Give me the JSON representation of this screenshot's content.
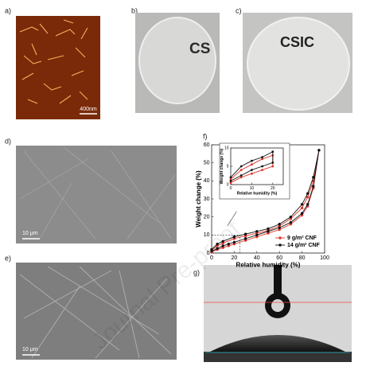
{
  "panels": {
    "a": "a)",
    "b": "b)",
    "c": "c)",
    "d": "d)",
    "e": "e)",
    "f": "f)",
    "g": "g)"
  },
  "images": {
    "afm_scale": "400nm",
    "photo_b_text": "CS",
    "photo_c_text": "CSIC",
    "sem_d_scale": "10 μm",
    "sem_e_scale": "10 μm"
  },
  "watermark": "Journal Pre-proof",
  "chart_data": [
    {
      "type": "line",
      "xlabel": "Relative humidity (%)",
      "ylabel": "Weight change (%)",
      "xlim": [
        0,
        100
      ],
      "xticks": [
        0,
        20,
        40,
        60,
        80,
        100
      ],
      "ylim": [
        0,
        60
      ],
      "yticks": [
        0,
        10,
        20,
        30,
        40,
        50,
        60
      ],
      "legend": "lower right",
      "series": [
        {
          "name": "9 g/m² CNF",
          "color": "#e0352b",
          "x": [
            0,
            5,
            10,
            15,
            20,
            30,
            40,
            50,
            60,
            70,
            80,
            85,
            90,
            95,
            90,
            85,
            80,
            70,
            60,
            50,
            40,
            30,
            20,
            10,
            5,
            0
          ],
          "values": [
            0.5,
            2,
            3,
            4,
            5,
            7,
            9,
            11,
            13,
            16,
            21,
            26,
            36,
            57,
            40,
            31,
            25,
            19,
            15,
            12.5,
            11,
            9.5,
            8,
            5.5,
            4,
            1.5
          ]
        },
        {
          "name": "14 g/m² CNF",
          "color": "#111111",
          "x": [
            0,
            5,
            10,
            15,
            20,
            30,
            40,
            50,
            60,
            70,
            80,
            85,
            90,
            95,
            90,
            85,
            80,
            70,
            60,
            50,
            40,
            30,
            20,
            10,
            5,
            0
          ],
          "values": [
            1,
            2.5,
            4,
            5,
            6,
            8,
            10,
            12,
            14,
            17,
            22,
            27,
            37,
            57,
            42,
            33,
            27,
            20,
            16,
            13.5,
            12,
            10.5,
            9,
            6.5,
            5,
            2
          ]
        }
      ]
    },
    {
      "type": "line",
      "xlabel": "Relative humidity (%)",
      "ylabel": "Weight change (%)",
      "xlim": [
        0,
        25
      ],
      "xticks": [
        0,
        10,
        20
      ],
      "ylim": [
        0,
        10
      ],
      "yticks": [
        0,
        5,
        10
      ],
      "series": [
        {
          "color": "#e0352b",
          "x": [
            0,
            5,
            10,
            15,
            20,
            20,
            15,
            10,
            5,
            0
          ],
          "values": [
            0.5,
            2,
            3,
            4,
            5,
            8,
            7,
            5.5,
            4,
            1.5
          ]
        },
        {
          "color": "#111111",
          "x": [
            0,
            5,
            10,
            15,
            20,
            20,
            15,
            10,
            5,
            0
          ],
          "values": [
            1,
            2.5,
            4,
            5,
            6,
            9,
            7.5,
            6.5,
            5,
            2
          ]
        }
      ]
    }
  ]
}
